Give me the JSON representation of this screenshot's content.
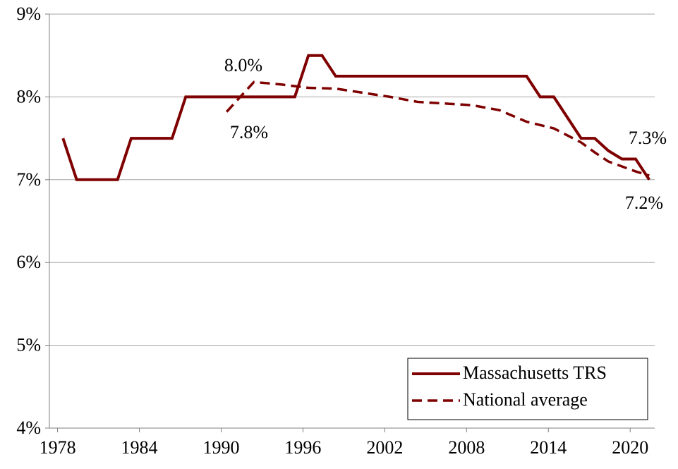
{
  "chart_data": {
    "type": "line",
    "xlim": [
      1977.4,
      2021.8
    ],
    "xticks": [
      1978,
      1984,
      1990,
      1996,
      2002,
      2008,
      2014,
      2020
    ],
    "ylim": [
      4,
      9
    ],
    "yticks": [
      {
        "value": 4,
        "label": "4%"
      },
      {
        "value": 5,
        "label": "5%"
      },
      {
        "value": 6,
        "label": "6%"
      },
      {
        "value": 7,
        "label": "7%"
      },
      {
        "value": 8,
        "label": "8%"
      },
      {
        "value": 9,
        "label": "9%"
      }
    ],
    "grid": true,
    "legend": "lower right",
    "series": [
      {
        "name": "Massachusetts TRS",
        "color": "#7f0000",
        "style": "solid",
        "x": [
          1978.4,
          1979.4,
          1982.4,
          1983.4,
          1986.4,
          1987.4,
          1995.4,
          1996.4,
          1997.4,
          1998.4,
          2012.4,
          2013.4,
          2014.4,
          2016.4,
          2017.4,
          2018.4,
          2019.4,
          2020.4,
          2021.4
        ],
        "values": [
          7.5,
          7.0,
          7.0,
          7.5,
          7.5,
          8.0,
          8.0,
          8.5,
          8.5,
          8.25,
          8.25,
          8.0,
          8.0,
          7.5,
          7.5,
          7.35,
          7.25,
          7.25,
          7.0
        ]
      },
      {
        "name": "National average",
        "color": "#7f0000",
        "style": "dashed",
        "x": [
          1990.4,
          1992.4,
          1994.4,
          1996.4,
          1998.4,
          2000.4,
          2002.4,
          2004.4,
          2006.4,
          2008.4,
          2010.4,
          2012.4,
          2014.4,
          2016.4,
          2017.4,
          2018.4,
          2020.4,
          2021.4
        ],
        "values": [
          7.82,
          8.18,
          8.15,
          8.11,
          8.1,
          8.05,
          8.0,
          7.94,
          7.92,
          7.9,
          7.84,
          7.7,
          7.62,
          7.45,
          7.33,
          7.22,
          7.1,
          7.05
        ]
      }
    ],
    "annotations": [
      "8.0%",
      "7.8%",
      "7.3%",
      "7.2%"
    ]
  }
}
